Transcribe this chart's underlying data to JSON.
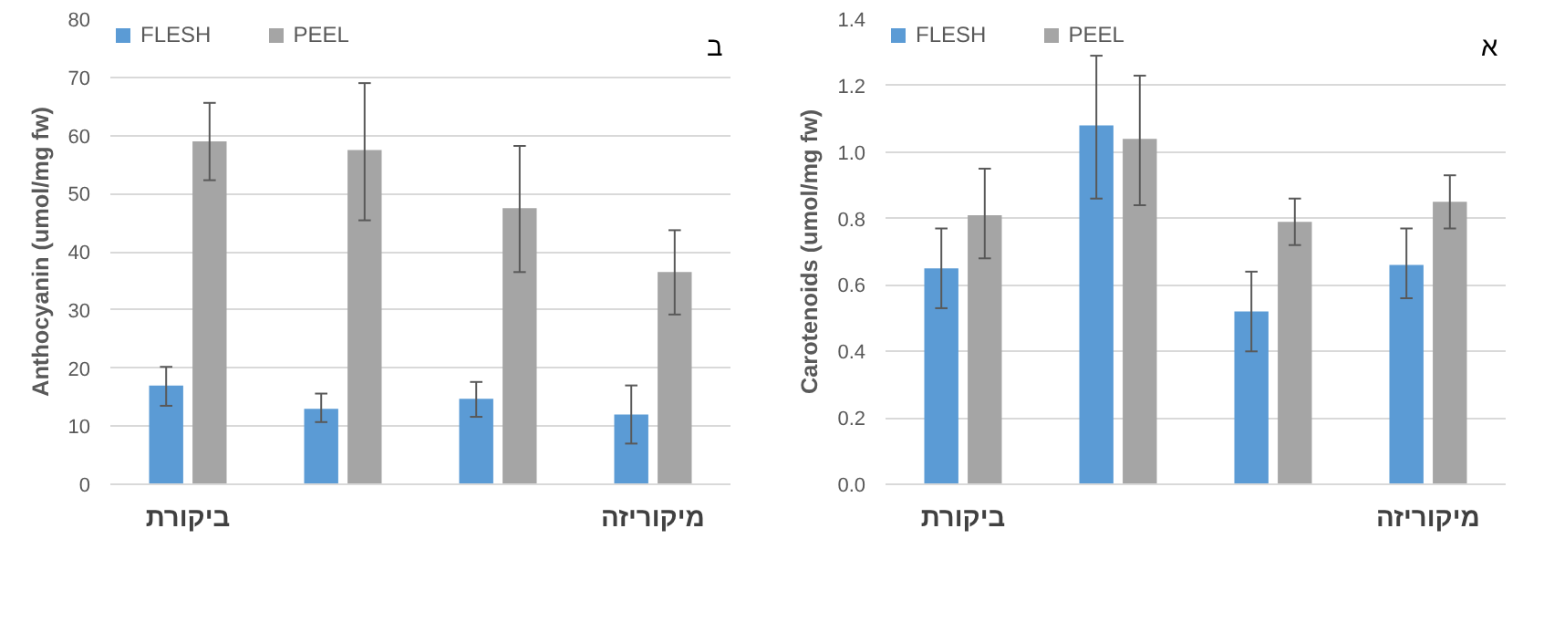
{
  "chart_data": [
    {
      "type": "bar",
      "ylabel": "Anthocyanin (umol/mg fw)",
      "categories": [
        "ביקורת",
        null,
        null,
        "מיקוריזה"
      ],
      "ylim": [
        0,
        80
      ],
      "yticks": [
        0,
        10,
        20,
        30,
        40,
        50,
        60,
        70,
        80
      ],
      "grid": "y",
      "legend": "top left",
      "annotations": [
        "ב"
      ],
      "series": [
        {
          "name": "FLESH",
          "color": "#5b9bd5",
          "values": [
            17,
            13,
            14.7,
            12
          ],
          "errors": [
            [
              13.5,
              20.2
            ],
            [
              10.7,
              15.6
            ],
            [
              11.6,
              17.6
            ],
            [
              7,
              17
            ]
          ]
        },
        {
          "name": "PEEL",
          "color": "#a5a5a5",
          "values": [
            59,
            57.5,
            47.5,
            36.5
          ],
          "errors": [
            [
              52.3,
              65.6
            ],
            [
              45.4,
              69
            ],
            [
              36.5,
              58.2
            ],
            [
              29.2,
              43.7
            ]
          ]
        }
      ]
    },
    {
      "type": "bar",
      "ylabel": "Carotenoids (umol/mg fw)",
      "categories": [
        "ביקורת",
        null,
        null,
        "מיקוריזה"
      ],
      "ylim": [
        0,
        1.4
      ],
      "yticks": [
        {
          "value": 0,
          "label": "0.0"
        },
        0.2,
        0.4,
        0.6,
        0.8,
        {
          "value": 1,
          "label": "1.0"
        },
        1.2,
        1.4
      ],
      "grid": "y",
      "legend": "top left",
      "annotations": [
        "א"
      ],
      "series": [
        {
          "name": "FLESH",
          "color": "#5b9bd5",
          "values": [
            0.65,
            1.08,
            0.52,
            0.66
          ],
          "errors": [
            [
              0.53,
              0.77
            ],
            [
              0.86,
              1.29
            ],
            [
              0.4,
              0.64
            ],
            [
              0.56,
              0.77
            ]
          ]
        },
        {
          "name": "PEEL",
          "color": "#a5a5a5",
          "values": [
            0.81,
            1.04,
            0.79,
            0.85
          ],
          "errors": [
            [
              0.68,
              0.95
            ],
            [
              0.84,
              1.23
            ],
            [
              0.72,
              0.86
            ],
            [
              0.77,
              0.93
            ]
          ]
        }
      ]
    }
  ]
}
